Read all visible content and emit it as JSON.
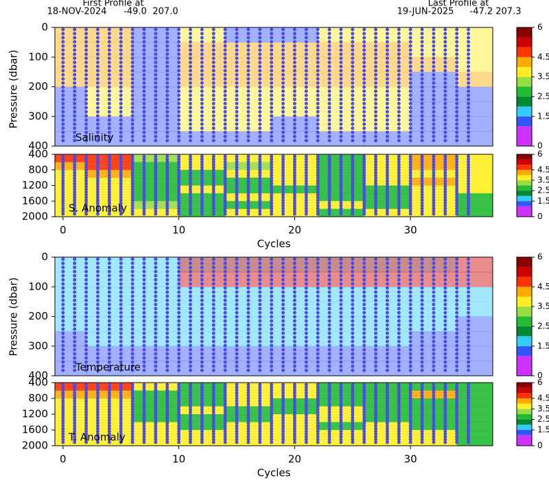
{
  "header": {
    "first_label": "First Profile at",
    "first_date": "18-NOV-2024",
    "first_lat": "-49.0",
    "first_lon": "207.0",
    "last_label": "Last Profile at",
    "last_date": "19-JUN-2025",
    "last_pos": "-47.2 207.3"
  },
  "colorbar": {
    "levels": [
      0,
      1,
      1.5,
      2,
      2.5,
      3,
      3.5,
      4,
      4.5,
      5,
      5.5,
      6
    ],
    "colors": [
      "#cc33ff",
      "#3355ff",
      "#33ccff",
      "#008833",
      "#22bb33",
      "#99dd44",
      "#ffee22",
      "#ffaa00",
      "#ff3300",
      "#cc0000",
      "#880000"
    ],
    "ticks": [
      0,
      1.5,
      2.5,
      3.5,
      4.5,
      6
    ]
  },
  "y_label": "Pressure (dbar)",
  "chart_data": [
    {
      "type": "heatmap",
      "label": "Salinity",
      "opacity": 0.45,
      "xlim": [
        -0.7,
        37.1
      ],
      "ylim": [
        0,
        400
      ],
      "yticks": [
        0,
        100,
        200,
        300,
        400
      ],
      "x": [
        0,
        4,
        8,
        12,
        16,
        20,
        24,
        28,
        32,
        36
      ],
      "y": [
        25,
        75,
        125,
        175,
        225,
        275,
        325,
        375
      ],
      "z": [
        [
          4.2,
          4.2,
          1.2,
          3.7,
          1.2,
          1.2,
          3.7,
          3.7,
          3.7,
          3.7
        ],
        [
          4.2,
          4.2,
          1.2,
          4.2,
          4.2,
          4.2,
          4.2,
          4.2,
          3.7,
          3.7
        ],
        [
          4.2,
          4.2,
          1.2,
          4.2,
          4.2,
          4.2,
          4.2,
          4.2,
          4.2,
          3.7
        ],
        [
          4.2,
          4.2,
          1.2,
          4.2,
          4.2,
          4.2,
          4.2,
          4.2,
          1.2,
          4.2
        ],
        [
          1.2,
          3.7,
          1.2,
          3.7,
          3.7,
          3.7,
          3.7,
          3.7,
          1.2,
          1.2
        ],
        [
          1.2,
          3.7,
          1.2,
          3.7,
          3.7,
          3.7,
          3.7,
          3.7,
          1.2,
          1.2
        ],
        [
          1.2,
          1.2,
          1.2,
          3.7,
          3.7,
          1.2,
          3.7,
          3.7,
          1.2,
          1.2
        ],
        [
          1.2,
          1.2,
          1.2,
          1.2,
          1.2,
          1.2,
          1.2,
          1.2,
          1.2,
          1.2
        ]
      ],
      "profiles": [
        0,
        1,
        2,
        3,
        4,
        5,
        6,
        7,
        8,
        9,
        10,
        11,
        12,
        13,
        14,
        15,
        16,
        17,
        18,
        19,
        20,
        21,
        22,
        23,
        24,
        25,
        26,
        27,
        28,
        29,
        30,
        31,
        32,
        33,
        34,
        35
      ]
    },
    {
      "type": "heatmap",
      "label": "S. Anomaly",
      "opacity": 0.9,
      "xlim": [
        -0.7,
        37.1
      ],
      "ylim": [
        400,
        2000
      ],
      "yticks": [
        400,
        800,
        1200,
        1600,
        2000
      ],
      "xticks": [
        0,
        10,
        20,
        30
      ],
      "x_label": "Cycles",
      "x": [
        0,
        4,
        8,
        12,
        16,
        20,
        24,
        28,
        32,
        36
      ],
      "y": [
        500,
        700,
        900,
        1100,
        1300,
        1500,
        1700,
        1900
      ],
      "z": [
        [
          4.7,
          4.7,
          3.2,
          3.7,
          3.7,
          3.7,
          2.7,
          3.7,
          4.2,
          3.7
        ],
        [
          4.2,
          4.7,
          2.7,
          3.7,
          3.2,
          3.7,
          2.7,
          3.7,
          4.2,
          3.7
        ],
        [
          3.7,
          4.2,
          2.7,
          2.7,
          3.7,
          3.7,
          2.7,
          3.7,
          3.7,
          3.7
        ],
        [
          3.7,
          3.7,
          2.7,
          2.7,
          2.7,
          3.7,
          2.7,
          3.7,
          4.2,
          3.7
        ],
        [
          3.7,
          3.7,
          2.7,
          3.7,
          2.7,
          2.7,
          2.7,
          2.7,
          3.7,
          3.7
        ],
        [
          3.7,
          3.7,
          2.7,
          2.7,
          3.7,
          3.7,
          2.7,
          2.7,
          3.7,
          2.7
        ],
        [
          3.7,
          3.7,
          3.2,
          2.7,
          2.7,
          3.7,
          3.7,
          2.7,
          3.7,
          2.7
        ],
        [
          3.7,
          3.7,
          3.7,
          2.7,
          3.7,
          3.7,
          2.7,
          3.7,
          3.7,
          2.7
        ]
      ],
      "profiles": [
        0,
        1,
        2,
        3,
        4,
        5,
        6,
        7,
        8,
        9,
        10,
        11,
        12,
        13,
        14,
        15,
        16,
        17,
        18,
        19,
        20,
        21,
        22,
        23,
        24,
        25,
        26,
        27,
        28,
        29,
        30,
        31,
        32,
        33,
        34,
        35
      ]
    },
    {
      "type": "heatmap",
      "label": "Temperature",
      "opacity": 0.45,
      "xlim": [
        -0.7,
        37.1
      ],
      "ylim": [
        0,
        400
      ],
      "yticks": [
        0,
        100,
        200,
        300,
        400
      ],
      "x": [
        0,
        4,
        8,
        12,
        16,
        20,
        24,
        28,
        32,
        36
      ],
      "y": [
        25,
        75,
        125,
        175,
        225,
        275,
        325,
        375
      ],
      "z": [
        [
          1.7,
          1.7,
          1.7,
          5.7,
          5.7,
          5.7,
          5.7,
          5.7,
          5.7,
          5.2
        ],
        [
          1.7,
          1.7,
          1.7,
          5.2,
          5.2,
          5.2,
          5.2,
          5.2,
          5.2,
          5.2
        ],
        [
          1.7,
          1.7,
          1.7,
          1.7,
          1.7,
          1.7,
          1.7,
          1.7,
          1.7,
          1.7
        ],
        [
          1.7,
          1.7,
          1.7,
          1.7,
          1.7,
          1.7,
          1.7,
          1.7,
          1.7,
          1.7
        ],
        [
          1.7,
          1.7,
          1.7,
          1.7,
          1.7,
          1.7,
          1.7,
          1.7,
          1.7,
          1.3
        ],
        [
          1.3,
          1.7,
          1.7,
          1.7,
          1.7,
          1.7,
          1.7,
          1.7,
          1.3,
          1.3
        ],
        [
          1.3,
          1.3,
          1.3,
          1.3,
          1.3,
          1.3,
          1.3,
          1.3,
          1.3,
          1.3
        ],
        [
          1.3,
          1.3,
          1.3,
          1.3,
          1.3,
          1.3,
          1.3,
          1.3,
          1.3,
          1.3
        ]
      ],
      "profiles": [
        0,
        1,
        2,
        3,
        4,
        5,
        6,
        7,
        8,
        9,
        10,
        11,
        12,
        13,
        14,
        15,
        16,
        17,
        18,
        19,
        20,
        21,
        22,
        23,
        24,
        25,
        26,
        27,
        28,
        29,
        30,
        31,
        32,
        33,
        34,
        35
      ]
    },
    {
      "type": "heatmap",
      "label": "T. Anomaly",
      "opacity": 0.9,
      "xlim": [
        -0.7,
        37.1
      ],
      "ylim": [
        400,
        2000
      ],
      "yticks": [
        400,
        800,
        1200,
        1600,
        2000
      ],
      "xticks": [
        0,
        10,
        20,
        30
      ],
      "x_label": "Cycles",
      "x": [
        0,
        4,
        8,
        12,
        16,
        20,
        24,
        28,
        32,
        36
      ],
      "y": [
        500,
        700,
        900,
        1100,
        1300,
        1500,
        1700,
        1900
      ],
      "z": [
        [
          4.7,
          4.7,
          3.7,
          2.7,
          3.7,
          3.7,
          2.7,
          2.7,
          2.7,
          2.7
        ],
        [
          4.2,
          4.2,
          2.7,
          2.7,
          3.7,
          3.7,
          2.7,
          2.7,
          4.2,
          2.7
        ],
        [
          3.7,
          3.7,
          2.7,
          2.7,
          3.7,
          2.7,
          2.7,
          2.7,
          2.7,
          2.7
        ],
        [
          3.7,
          3.7,
          2.7,
          3.7,
          2.7,
          2.7,
          3.7,
          2.7,
          2.7,
          2.7
        ],
        [
          3.7,
          3.7,
          2.7,
          2.7,
          2.7,
          3.7,
          3.7,
          2.7,
          2.7,
          2.7
        ],
        [
          3.7,
          3.7,
          3.7,
          2.7,
          3.7,
          3.7,
          2.7,
          3.7,
          2.7,
          2.7
        ],
        [
          3.7,
          3.7,
          3.7,
          3.7,
          3.7,
          3.7,
          3.7,
          3.7,
          3.7,
          2.7
        ],
        [
          3.7,
          3.7,
          3.7,
          3.7,
          3.7,
          3.7,
          3.7,
          3.7,
          3.7,
          2.7
        ]
      ],
      "profiles": [
        0,
        1,
        2,
        3,
        4,
        5,
        6,
        7,
        8,
        9,
        10,
        11,
        12,
        13,
        14,
        15,
        16,
        17,
        18,
        19,
        20,
        21,
        22,
        23,
        24,
        25,
        26,
        27,
        28,
        29,
        30,
        31,
        32,
        33,
        34,
        35
      ]
    }
  ]
}
